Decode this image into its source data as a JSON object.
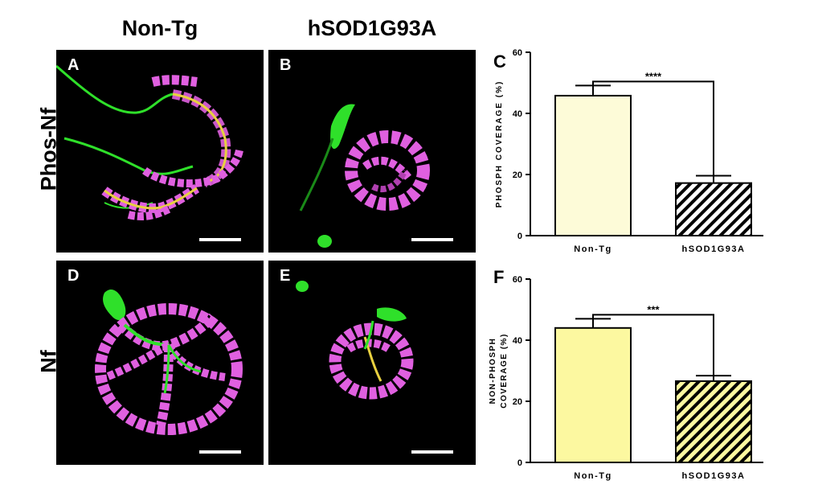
{
  "columns": {
    "left": "Non-Tg",
    "right": "hSOD1G93A"
  },
  "rows": {
    "top": "Phos-Nf",
    "bottom": "Nf"
  },
  "panels": {
    "a": "A",
    "b": "B",
    "d": "D",
    "e": "E"
  },
  "colors": {
    "green": "#2fe02a",
    "magenta": "#e060e0",
    "yellow": "#e8d040"
  },
  "chart_data": [
    {
      "type": "bar",
      "panel_letter": "C",
      "categories": [
        "Non-Tg",
        "hSOD1G93A"
      ],
      "values": [
        45.8,
        17.2
      ],
      "errors": [
        3.3,
        2.4
      ],
      "fills": [
        "#fdfbd8",
        "hatch"
      ],
      "ylabel": "PHOSPH COVERAGE  (%)",
      "ylim": [
        0,
        60
      ],
      "yticks": [
        "0",
        "20",
        "40",
        "60"
      ],
      "significance": "****"
    },
    {
      "type": "bar",
      "panel_letter": "F",
      "categories": [
        "Non-Tg",
        "hSOD1G93A"
      ],
      "values": [
        44.0,
        26.6
      ],
      "errors": [
        3.0,
        1.8
      ],
      "fills": [
        "#fcf8a0",
        "hatch-yellow"
      ],
      "ylabel_lines": [
        "NON-PHOSPH",
        "COVERAGE  (%)"
      ],
      "ylim": [
        0,
        60
      ],
      "yticks": [
        "0",
        "20",
        "40",
        "60"
      ],
      "significance": "***"
    }
  ]
}
